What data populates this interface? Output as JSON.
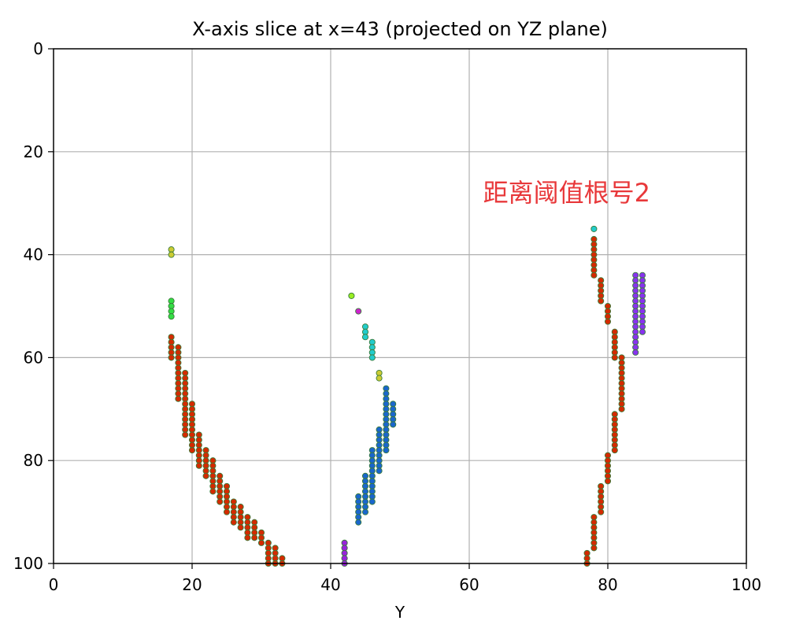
{
  "chart_data": {
    "type": "scatter",
    "title": "X-axis slice at x=43 (projected on YZ plane)",
    "xlabel": "Y",
    "ylabel": "",
    "xlim": [
      0,
      100
    ],
    "ylim": [
      100,
      0
    ],
    "y_inverted": true,
    "xticks": [
      "0",
      "20",
      "40",
      "60",
      "80",
      "100"
    ],
    "yticks": [
      "0",
      "20",
      "40",
      "60",
      "80",
      "100"
    ],
    "grid": true,
    "annotation": {
      "text": "距离阈值根号2",
      "x": 62,
      "y": 28,
      "color": "#e8383a"
    },
    "series": [
      {
        "color": "#cccc33",
        "points": [
          [
            17,
            39
          ],
          [
            17,
            40
          ],
          [
            47,
            63
          ],
          [
            47,
            64
          ]
        ]
      },
      {
        "color": "#33dd44",
        "points": [
          [
            17,
            49
          ],
          [
            17,
            50
          ],
          [
            17,
            51
          ],
          [
            17,
            52
          ]
        ]
      },
      {
        "color": "#99ee22",
        "points": [
          [
            43,
            48
          ]
        ]
      },
      {
        "color": "#cc22cc",
        "points": [
          [
            44,
            51
          ]
        ]
      },
      {
        "color": "#22cccc",
        "points": [
          [
            45,
            54
          ],
          [
            45,
            55
          ],
          [
            45,
            56
          ],
          [
            46,
            57
          ],
          [
            46,
            58
          ],
          [
            46,
            59
          ],
          [
            46,
            60
          ],
          [
            78,
            35
          ]
        ]
      },
      {
        "color": "#9922dd",
        "points": [
          [
            42,
            96
          ],
          [
            42,
            97
          ],
          [
            42,
            98
          ],
          [
            42,
            99
          ],
          [
            42,
            100
          ]
        ]
      },
      {
        "color": "#8833ee",
        "points": [
          [
            84,
            44
          ],
          [
            84,
            45
          ],
          [
            84,
            46
          ],
          [
            84,
            47
          ],
          [
            84,
            48
          ],
          [
            84,
            49
          ],
          [
            84,
            50
          ],
          [
            84,
            51
          ],
          [
            84,
            52
          ],
          [
            84,
            53
          ],
          [
            84,
            54
          ],
          [
            84,
            55
          ],
          [
            84,
            56
          ],
          [
            84,
            57
          ],
          [
            84,
            58
          ],
          [
            84,
            59
          ],
          [
            85,
            44
          ],
          [
            85,
            45
          ],
          [
            85,
            46
          ],
          [
            85,
            47
          ],
          [
            85,
            48
          ],
          [
            85,
            49
          ],
          [
            85,
            50
          ],
          [
            85,
            51
          ],
          [
            85,
            52
          ],
          [
            85,
            53
          ],
          [
            85,
            54
          ],
          [
            85,
            55
          ]
        ]
      },
      {
        "color": "#1a66cc",
        "points": [
          [
            44,
            87
          ],
          [
            44,
            88
          ],
          [
            44,
            89
          ],
          [
            44,
            90
          ],
          [
            44,
            91
          ],
          [
            44,
            92
          ],
          [
            45,
            83
          ],
          [
            45,
            84
          ],
          [
            45,
            85
          ],
          [
            45,
            86
          ],
          [
            45,
            87
          ],
          [
            45,
            88
          ],
          [
            45,
            89
          ],
          [
            45,
            90
          ],
          [
            46,
            78
          ],
          [
            46,
            79
          ],
          [
            46,
            80
          ],
          [
            46,
            81
          ],
          [
            46,
            82
          ],
          [
            46,
            83
          ],
          [
            46,
            84
          ],
          [
            46,
            85
          ],
          [
            46,
            86
          ],
          [
            46,
            87
          ],
          [
            46,
            88
          ],
          [
            47,
            74
          ],
          [
            47,
            75
          ],
          [
            47,
            76
          ],
          [
            47,
            77
          ],
          [
            47,
            78
          ],
          [
            47,
            79
          ],
          [
            47,
            80
          ],
          [
            47,
            81
          ],
          [
            47,
            82
          ],
          [
            48,
            66
          ],
          [
            48,
            67
          ],
          [
            48,
            68
          ],
          [
            48,
            69
          ],
          [
            48,
            70
          ],
          [
            48,
            71
          ],
          [
            48,
            72
          ],
          [
            48,
            73
          ],
          [
            48,
            74
          ],
          [
            48,
            75
          ],
          [
            48,
            76
          ],
          [
            48,
            77
          ],
          [
            48,
            78
          ],
          [
            49,
            69
          ],
          [
            49,
            70
          ],
          [
            49,
            71
          ],
          [
            49,
            72
          ],
          [
            49,
            73
          ]
        ]
      },
      {
        "color": "#d42a00",
        "points": [
          [
            17,
            56
          ],
          [
            17,
            57
          ],
          [
            17,
            58
          ],
          [
            17,
            59
          ],
          [
            17,
            60
          ],
          [
            18,
            58
          ],
          [
            18,
            59
          ],
          [
            18,
            60
          ],
          [
            18,
            61
          ],
          [
            18,
            62
          ],
          [
            18,
            63
          ],
          [
            18,
            64
          ],
          [
            18,
            65
          ],
          [
            18,
            66
          ],
          [
            18,
            67
          ],
          [
            18,
            68
          ],
          [
            19,
            63
          ],
          [
            19,
            64
          ],
          [
            19,
            65
          ],
          [
            19,
            66
          ],
          [
            19,
            67
          ],
          [
            19,
            68
          ],
          [
            19,
            69
          ],
          [
            19,
            70
          ],
          [
            19,
            71
          ],
          [
            19,
            72
          ],
          [
            19,
            73
          ],
          [
            19,
            74
          ],
          [
            19,
            75
          ],
          [
            20,
            69
          ],
          [
            20,
            70
          ],
          [
            20,
            71
          ],
          [
            20,
            72
          ],
          [
            20,
            73
          ],
          [
            20,
            74
          ],
          [
            20,
            75
          ],
          [
            20,
            76
          ],
          [
            20,
            77
          ],
          [
            20,
            78
          ],
          [
            21,
            75
          ],
          [
            21,
            76
          ],
          [
            21,
            77
          ],
          [
            21,
            78
          ],
          [
            21,
            79
          ],
          [
            21,
            80
          ],
          [
            21,
            81
          ],
          [
            22,
            78
          ],
          [
            22,
            79
          ],
          [
            22,
            80
          ],
          [
            22,
            81
          ],
          [
            22,
            82
          ],
          [
            22,
            83
          ],
          [
            23,
            80
          ],
          [
            23,
            81
          ],
          [
            23,
            82
          ],
          [
            23,
            83
          ],
          [
            23,
            84
          ],
          [
            23,
            85
          ],
          [
            23,
            86
          ],
          [
            24,
            83
          ],
          [
            24,
            84
          ],
          [
            24,
            85
          ],
          [
            24,
            86
          ],
          [
            24,
            87
          ],
          [
            24,
            88
          ],
          [
            25,
            85
          ],
          [
            25,
            86
          ],
          [
            25,
            87
          ],
          [
            25,
            88
          ],
          [
            25,
            89
          ],
          [
            25,
            90
          ],
          [
            26,
            88
          ],
          [
            26,
            89
          ],
          [
            26,
            90
          ],
          [
            26,
            91
          ],
          [
            26,
            92
          ],
          [
            27,
            89
          ],
          [
            27,
            90
          ],
          [
            27,
            91
          ],
          [
            27,
            92
          ],
          [
            27,
            93
          ],
          [
            28,
            91
          ],
          [
            28,
            92
          ],
          [
            28,
            93
          ],
          [
            28,
            94
          ],
          [
            28,
            95
          ],
          [
            29,
            92
          ],
          [
            29,
            93
          ],
          [
            29,
            94
          ],
          [
            29,
            95
          ],
          [
            30,
            94
          ],
          [
            30,
            95
          ],
          [
            30,
            96
          ],
          [
            31,
            96
          ],
          [
            31,
            97
          ],
          [
            31,
            98
          ],
          [
            31,
            99
          ],
          [
            31,
            100
          ],
          [
            32,
            97
          ],
          [
            32,
            98
          ],
          [
            32,
            99
          ],
          [
            32,
            100
          ],
          [
            33,
            99
          ],
          [
            33,
            100
          ],
          [
            78,
            37
          ],
          [
            78,
            38
          ],
          [
            78,
            39
          ],
          [
            78,
            40
          ],
          [
            78,
            41
          ],
          [
            78,
            42
          ],
          [
            78,
            43
          ],
          [
            78,
            44
          ],
          [
            79,
            45
          ],
          [
            79,
            46
          ],
          [
            79,
            47
          ],
          [
            79,
            48
          ],
          [
            79,
            49
          ],
          [
            80,
            50
          ],
          [
            80,
            51
          ],
          [
            80,
            52
          ],
          [
            80,
            53
          ],
          [
            81,
            55
          ],
          [
            81,
            56
          ],
          [
            81,
            57
          ],
          [
            81,
            58
          ],
          [
            81,
            59
          ],
          [
            81,
            60
          ],
          [
            82,
            60
          ],
          [
            82,
            61
          ],
          [
            82,
            62
          ],
          [
            82,
            63
          ],
          [
            82,
            64
          ],
          [
            82,
            65
          ],
          [
            82,
            66
          ],
          [
            82,
            67
          ],
          [
            82,
            68
          ],
          [
            82,
            69
          ],
          [
            82,
            70
          ],
          [
            81,
            71
          ],
          [
            81,
            72
          ],
          [
            81,
            73
          ],
          [
            81,
            74
          ],
          [
            81,
            75
          ],
          [
            81,
            76
          ],
          [
            81,
            77
          ],
          [
            81,
            78
          ],
          [
            80,
            79
          ],
          [
            80,
            80
          ],
          [
            80,
            81
          ],
          [
            80,
            82
          ],
          [
            80,
            83
          ],
          [
            80,
            84
          ],
          [
            79,
            85
          ],
          [
            79,
            86
          ],
          [
            79,
            87
          ],
          [
            79,
            88
          ],
          [
            79,
            89
          ],
          [
            79,
            90
          ],
          [
            78,
            91
          ],
          [
            78,
            92
          ],
          [
            78,
            93
          ],
          [
            78,
            94
          ],
          [
            78,
            95
          ],
          [
            78,
            96
          ],
          [
            78,
            97
          ],
          [
            77,
            98
          ],
          [
            77,
            99
          ],
          [
            77,
            100
          ]
        ]
      }
    ]
  }
}
